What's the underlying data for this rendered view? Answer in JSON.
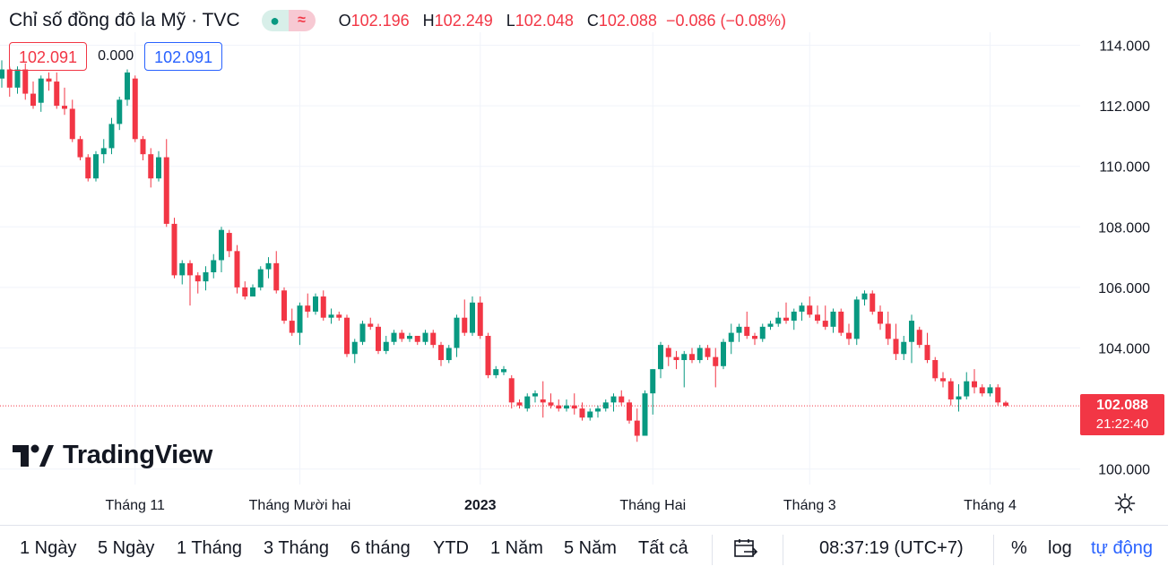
{
  "legend": {
    "title": "Chỉ số đồng đô la Mỹ · TVC",
    "open_label": "O",
    "open": "102.196",
    "high_label": "H",
    "high": "102.249",
    "low_label": "L",
    "low": "102.048",
    "close_label": "C",
    "close": "102.088",
    "change": "−0.086 (−0.08%)",
    "status_icon": "dot-icon",
    "wave_icon": "approx-icon",
    "wave_glyph": "≈"
  },
  "inputs": {
    "sell": "102.091",
    "spread": "0.000",
    "buy": "102.091"
  },
  "price_tag": {
    "price": "102.088",
    "countdown": "21:22:40"
  },
  "brand": {
    "name": "TradingView"
  },
  "colors": {
    "up": "#089981",
    "down": "#f23645",
    "accent": "#2962ff",
    "grid": "#f0f3fa"
  },
  "toolbar": {
    "ranges": [
      "1 Ngày",
      "5 Ngày",
      "1 Tháng",
      "3 Tháng",
      "6 tháng",
      "YTD",
      "1 Năm",
      "5 Năm",
      "Tất cả"
    ],
    "goto_icon": "calendar-goto-icon",
    "time": "08:37:19 (UTC+7)",
    "percent": "%",
    "log": "log",
    "auto": "tự động"
  },
  "chart_data": {
    "type": "candlestick",
    "title": "Chỉ số đồng đô la Mỹ · TVC",
    "y_ticks": [
      "114.000",
      "112.000",
      "110.000",
      "108.000",
      "106.000",
      "104.000",
      "100.000"
    ],
    "y_tick_values": [
      114,
      112,
      110,
      108,
      106,
      104,
      100
    ],
    "x_ticks": [
      {
        "label": "Tháng 11",
        "index": 17,
        "bold": false
      },
      {
        "label": "Tháng Mười hai",
        "index": 38,
        "bold": false
      },
      {
        "label": "2023",
        "index": 61,
        "bold": true
      },
      {
        "label": "Tháng Hai",
        "index": 83,
        "bold": false
      },
      {
        "label": "Tháng 3",
        "index": 103,
        "bold": false
      },
      {
        "label": "Tháng 4",
        "index": 126,
        "bold": false
      }
    ],
    "ylim": [
      99.5,
      115.0
    ],
    "last_price": 102.088,
    "ohlc": [
      [
        112.9,
        113.5,
        112.6,
        113.2
      ],
      [
        113.2,
        113.3,
        112.3,
        112.6
      ],
      [
        112.6,
        113.3,
        112.4,
        113.2
      ],
      [
        113.2,
        113.4,
        112.2,
        112.4
      ],
      [
        112.4,
        112.8,
        111.9,
        112.0
      ],
      [
        112.1,
        113.0,
        111.8,
        112.9
      ],
      [
        112.9,
        113.1,
        112.5,
        112.8
      ],
      [
        112.8,
        113.1,
        111.9,
        112.0
      ],
      [
        112.0,
        112.6,
        111.7,
        111.9
      ],
      [
        111.9,
        112.2,
        110.8,
        110.9
      ],
      [
        110.9,
        111.0,
        110.2,
        110.3
      ],
      [
        110.3,
        110.4,
        109.5,
        109.6
      ],
      [
        109.6,
        110.5,
        109.5,
        110.4
      ],
      [
        110.4,
        110.9,
        110.1,
        110.6
      ],
      [
        110.6,
        111.6,
        110.4,
        111.4
      ],
      [
        111.4,
        112.3,
        111.2,
        112.2
      ],
      [
        112.2,
        113.2,
        112.0,
        113.1
      ],
      [
        112.9,
        113.0,
        110.8,
        110.9
      ],
      [
        110.9,
        111.0,
        110.2,
        110.4
      ],
      [
        110.4,
        110.6,
        109.3,
        109.6
      ],
      [
        109.6,
        110.5,
        109.5,
        110.3
      ],
      [
        110.3,
        110.9,
        108.0,
        108.1
      ],
      [
        108.1,
        108.3,
        106.3,
        106.4
      ],
      [
        106.4,
        106.9,
        106.1,
        106.8
      ],
      [
        106.8,
        106.9,
        105.4,
        106.4
      ],
      [
        106.4,
        106.5,
        105.8,
        106.2
      ],
      [
        106.2,
        106.7,
        105.9,
        106.5
      ],
      [
        106.5,
        107.1,
        106.3,
        106.9
      ],
      [
        106.9,
        108.0,
        106.5,
        107.9
      ],
      [
        107.8,
        107.9,
        107.0,
        107.2
      ],
      [
        107.2,
        107.4,
        105.8,
        106.0
      ],
      [
        106.0,
        106.2,
        105.6,
        105.7
      ],
      [
        105.7,
        106.1,
        105.7,
        106.0
      ],
      [
        106.0,
        106.7,
        105.9,
        106.6
      ],
      [
        106.6,
        107.0,
        106.3,
        106.8
      ],
      [
        106.8,
        107.2,
        105.8,
        105.9
      ],
      [
        105.9,
        106.0,
        104.8,
        104.9
      ],
      [
        104.9,
        105.3,
        104.4,
        104.5
      ],
      [
        104.5,
        105.5,
        104.1,
        105.4
      ],
      [
        105.4,
        105.8,
        105.0,
        105.2
      ],
      [
        105.2,
        105.8,
        105.1,
        105.7
      ],
      [
        105.7,
        105.9,
        104.9,
        105.0
      ],
      [
        105.0,
        105.3,
        104.8,
        105.1
      ],
      [
        105.1,
        105.2,
        104.9,
        105.0
      ],
      [
        105.0,
        105.1,
        103.7,
        103.8
      ],
      [
        103.8,
        104.3,
        103.5,
        104.2
      ],
      [
        104.2,
        104.9,
        104.1,
        104.8
      ],
      [
        104.8,
        105.0,
        104.6,
        104.7
      ],
      [
        104.7,
        104.8,
        103.8,
        103.9
      ],
      [
        103.9,
        104.4,
        103.8,
        104.2
      ],
      [
        104.2,
        104.6,
        104.1,
        104.5
      ],
      [
        104.5,
        104.6,
        104.2,
        104.3
      ],
      [
        104.3,
        104.5,
        104.2,
        104.4
      ],
      [
        104.4,
        104.4,
        104.1,
        104.2
      ],
      [
        104.2,
        104.6,
        104.1,
        104.5
      ],
      [
        104.5,
        104.6,
        104.0,
        104.1
      ],
      [
        104.1,
        104.2,
        103.4,
        103.6
      ],
      [
        103.6,
        104.1,
        103.5,
        104.0
      ],
      [
        104.0,
        105.1,
        103.7,
        105.0
      ],
      [
        105.0,
        105.6,
        104.4,
        104.5
      ],
      [
        104.5,
        105.7,
        104.4,
        105.5
      ],
      [
        105.5,
        105.7,
        104.3,
        104.4
      ],
      [
        104.4,
        104.5,
        103.0,
        103.1
      ],
      [
        103.1,
        103.4,
        103.0,
        103.3
      ],
      [
        103.2,
        103.4,
        103.1,
        103.3
      ],
      [
        103.0,
        103.1,
        102.0,
        102.2
      ],
      [
        102.2,
        102.3,
        102.0,
        102.1
      ],
      [
        102.0,
        102.5,
        101.9,
        102.4
      ],
      [
        102.4,
        102.6,
        102.2,
        102.5
      ],
      [
        102.3,
        102.9,
        101.7,
        102.2
      ],
      [
        102.2,
        102.5,
        102.0,
        102.1
      ],
      [
        102.1,
        102.3,
        101.9,
        102.0
      ],
      [
        102.0,
        102.3,
        101.9,
        102.1
      ],
      [
        102.1,
        102.5,
        101.8,
        102.0
      ],
      [
        102.0,
        102.2,
        101.6,
        101.7
      ],
      [
        101.7,
        102.0,
        101.6,
        101.9
      ],
      [
        101.9,
        102.1,
        101.7,
        102.0
      ],
      [
        102.0,
        102.3,
        101.9,
        102.2
      ],
      [
        102.2,
        102.5,
        101.9,
        102.4
      ],
      [
        102.4,
        102.6,
        102.1,
        102.2
      ],
      [
        102.2,
        102.3,
        101.5,
        101.6
      ],
      [
        101.6,
        102.0,
        100.9,
        101.1
      ],
      [
        101.1,
        102.6,
        101.1,
        102.5
      ],
      [
        102.5,
        103.3,
        101.8,
        103.3
      ],
      [
        103.3,
        104.2,
        103.0,
        104.1
      ],
      [
        104.0,
        104.1,
        103.4,
        103.7
      ],
      [
        103.7,
        103.9,
        103.3,
        103.6
      ],
      [
        103.6,
        103.9,
        102.7,
        103.8
      ],
      [
        103.8,
        104.0,
        103.5,
        103.6
      ],
      [
        103.6,
        104.1,
        103.5,
        104.0
      ],
      [
        104.0,
        104.1,
        103.6,
        103.7
      ],
      [
        103.7,
        104.0,
        102.7,
        103.4
      ],
      [
        103.4,
        104.3,
        103.3,
        104.2
      ],
      [
        104.2,
        104.8,
        103.8,
        104.5
      ],
      [
        104.5,
        104.8,
        104.2,
        104.7
      ],
      [
        104.7,
        105.2,
        104.3,
        104.4
      ],
      [
        104.4,
        104.5,
        104.1,
        104.3
      ],
      [
        104.3,
        104.8,
        104.2,
        104.7
      ],
      [
        104.7,
        104.9,
        104.6,
        104.8
      ],
      [
        104.8,
        105.2,
        104.7,
        105.0
      ],
      [
        105.0,
        105.5,
        104.8,
        104.9
      ],
      [
        104.9,
        105.3,
        104.6,
        105.2
      ],
      [
        105.2,
        105.5,
        104.9,
        105.4
      ],
      [
        105.4,
        105.7,
        105.0,
        105.1
      ],
      [
        105.1,
        105.4,
        104.8,
        104.9
      ],
      [
        104.9,
        105.4,
        104.6,
        104.7
      ],
      [
        104.7,
        105.3,
        104.5,
        105.2
      ],
      [
        105.2,
        105.3,
        104.4,
        104.5
      ],
      [
        104.5,
        104.8,
        104.1,
        104.3
      ],
      [
        104.3,
        105.7,
        104.1,
        105.6
      ],
      [
        105.6,
        105.9,
        105.4,
        105.8
      ],
      [
        105.8,
        105.9,
        105.1,
        105.2
      ],
      [
        105.2,
        105.4,
        104.6,
        104.8
      ],
      [
        104.8,
        105.2,
        104.1,
        104.3
      ],
      [
        104.3,
        104.8,
        103.6,
        103.8
      ],
      [
        103.8,
        104.4,
        103.6,
        104.2
      ],
      [
        104.2,
        105.1,
        103.5,
        104.9
      ],
      [
        104.6,
        104.7,
        104.0,
        104.1
      ],
      [
        104.1,
        104.5,
        103.5,
        103.6
      ],
      [
        103.6,
        103.7,
        102.9,
        103.0
      ],
      [
        103.0,
        103.2,
        102.7,
        102.9
      ],
      [
        102.9,
        103.0,
        102.1,
        102.3
      ],
      [
        102.3,
        102.8,
        101.9,
        102.4
      ],
      [
        102.4,
        103.2,
        102.3,
        102.9
      ],
      [
        102.9,
        103.3,
        102.5,
        102.7
      ],
      [
        102.7,
        102.8,
        102.4,
        102.5
      ],
      [
        102.5,
        102.8,
        102.4,
        102.7
      ],
      [
        102.7,
        102.8,
        102.1,
        102.2
      ],
      [
        102.196,
        102.249,
        102.048,
        102.088
      ]
    ]
  }
}
